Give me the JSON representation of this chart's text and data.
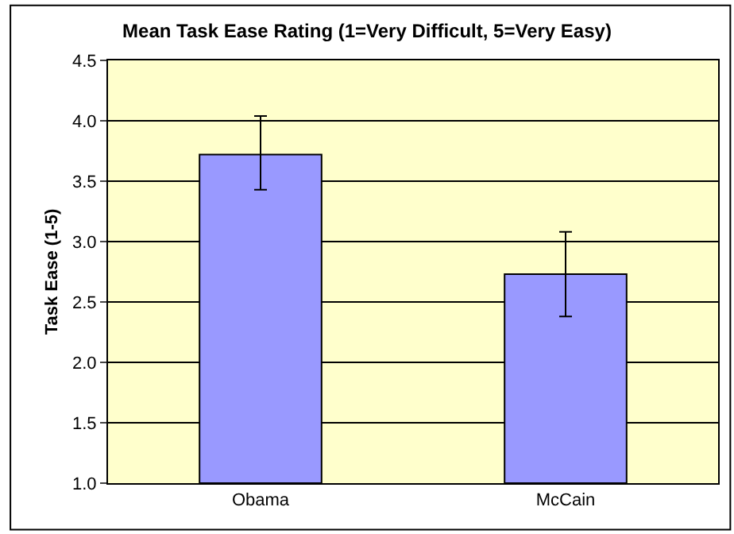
{
  "chart_data": {
    "type": "bar",
    "title": "Mean Task Ease Rating (1=Very Difficult, 5=Very Easy)",
    "ylabel": "Task Ease (1-5)",
    "categories": [
      "Obama",
      "McCain"
    ],
    "values": [
      3.72,
      2.73
    ],
    "errors": [
      [
        3.43,
        4.04
      ],
      [
        2.38,
        3.08
      ]
    ],
    "color": "#9999ff",
    "ylim": [
      1.0,
      4.5
    ],
    "yticks": [
      {
        "value": 1,
        "label": "1.0"
      },
      {
        "value": 1.5,
        "label": "1.5"
      },
      {
        "value": 2,
        "label": "2.0"
      },
      {
        "value": 2.5,
        "label": "2.5"
      },
      {
        "value": 3,
        "label": "3.0"
      },
      {
        "value": 3.5,
        "label": "3.5"
      },
      {
        "value": 4,
        "label": "4.0"
      },
      {
        "value": 4.5,
        "label": "4.5"
      }
    ],
    "grid": "y",
    "legend": false
  }
}
